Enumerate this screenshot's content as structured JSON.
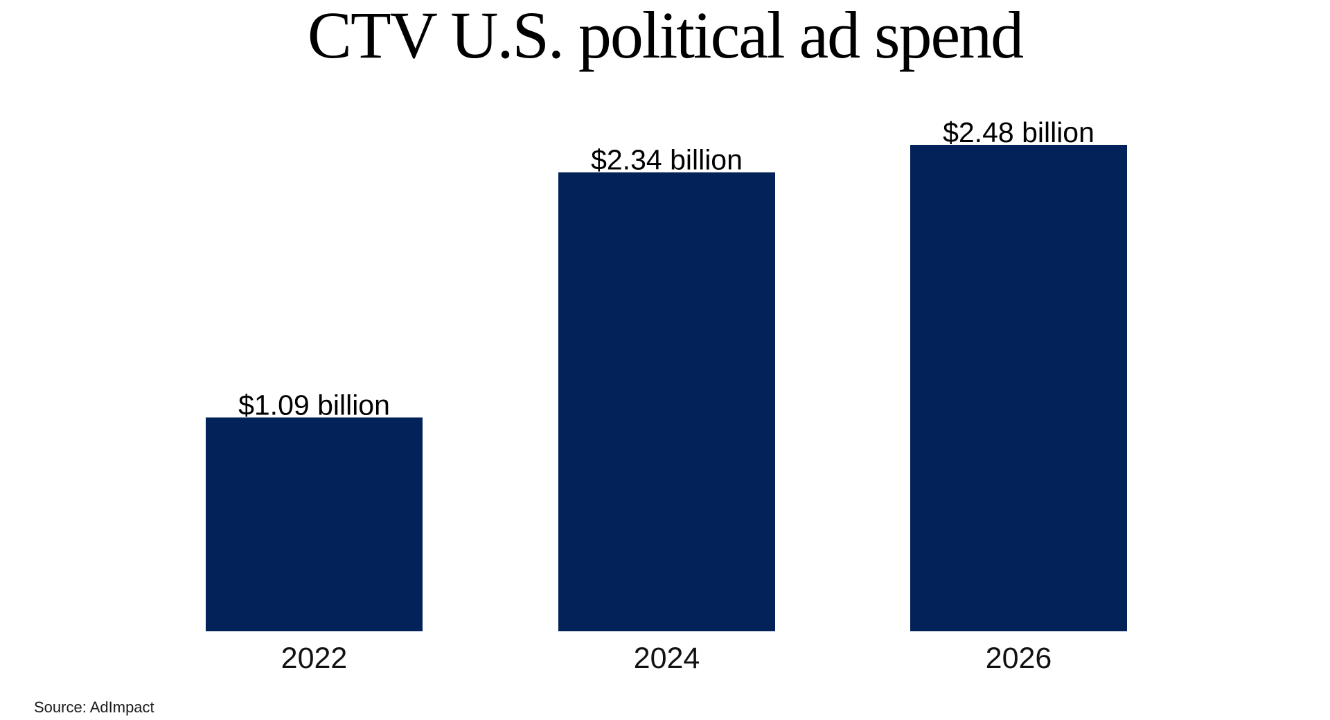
{
  "chart_data": {
    "type": "bar",
    "title": "CTV U.S. political ad spend",
    "categories": [
      "2022",
      "2024",
      "2026"
    ],
    "values": [
      1.09,
      2.34,
      2.48
    ],
    "data_labels": [
      "$1.09 billion",
      "$2.34 billion",
      "$2.48 billion"
    ],
    "xlabel": "",
    "ylabel": "",
    "ylim": [
      0,
      2.48
    ],
    "grid": false,
    "bar_color": "#032259",
    "source": "Source: AdImpact"
  }
}
